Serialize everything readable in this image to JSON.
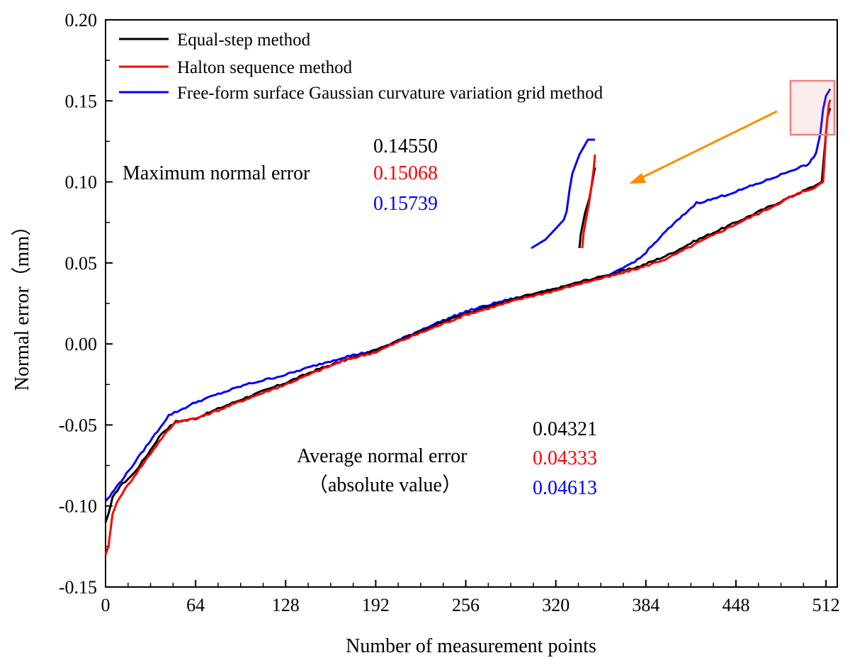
{
  "chart_data": {
    "type": "line",
    "xlabel": "Number of measurement points",
    "ylabel": "Normal error（mm）",
    "xlim": [
      0,
      520
    ],
    "ylim": [
      -0.15,
      0.2
    ],
    "x_ticks": [
      0,
      64,
      128,
      192,
      256,
      320,
      384,
      448,
      512
    ],
    "x_tick_labels": [
      "0",
      "64",
      "128",
      "192",
      "256",
      "320",
      "384",
      "448",
      "512"
    ],
    "y_ticks": [
      -0.15,
      -0.1,
      -0.05,
      0.0,
      0.05,
      0.1,
      0.15,
      0.2
    ],
    "y_tick_labels": [
      "-0.15",
      "-0.10",
      "-0.05",
      "0.00",
      "0.05",
      "0.10",
      "0.15",
      "0.20"
    ],
    "legend_position": "top-left",
    "series": [
      {
        "name": "Equal-step method",
        "color": "#000000",
        "x": [
          0,
          2,
          5,
          10,
          20,
          30,
          40,
          50,
          64,
          80,
          100,
          128,
          150,
          170,
          192,
          210,
          230,
          256,
          280,
          300,
          320,
          340,
          360,
          380,
          400,
          420,
          448,
          470,
          490,
          505,
          509,
          511,
          513,
          515
        ],
        "y": [
          -0.11,
          -0.105,
          -0.095,
          -0.088,
          -0.08,
          -0.068,
          -0.055,
          -0.048,
          -0.046,
          -0.04,
          -0.033,
          -0.024,
          -0.016,
          -0.01,
          -0.004,
          0.003,
          0.01,
          0.019,
          0.025,
          0.03,
          0.034,
          0.039,
          0.043,
          0.048,
          0.055,
          0.064,
          0.075,
          0.084,
          0.092,
          0.098,
          0.1,
          0.12,
          0.14,
          0.1455
        ]
      },
      {
        "name": "Halton sequence method",
        "color": "#ff0000",
        "x": [
          0,
          2,
          5,
          8,
          12,
          20,
          30,
          40,
          50,
          64,
          80,
          100,
          128,
          150,
          170,
          192,
          210,
          230,
          256,
          280,
          300,
          320,
          340,
          360,
          380,
          400,
          420,
          448,
          470,
          490,
          505,
          508,
          510,
          512,
          514,
          515
        ],
        "y": [
          -0.13,
          -0.125,
          -0.105,
          -0.098,
          -0.092,
          -0.082,
          -0.07,
          -0.058,
          -0.048,
          -0.046,
          -0.041,
          -0.034,
          -0.025,
          -0.017,
          -0.01,
          -0.005,
          0.002,
          0.009,
          0.018,
          0.024,
          0.029,
          0.033,
          0.038,
          0.042,
          0.047,
          0.053,
          0.062,
          0.074,
          0.083,
          0.092,
          0.097,
          0.099,
          0.1,
          0.13,
          0.148,
          0.15068
        ]
      },
      {
        "name": "Free-form surface Gaussian curvature variation grid method",
        "color": "#0000ff",
        "x": [
          0,
          3,
          8,
          15,
          25,
          35,
          45,
          55,
          64,
          80,
          100,
          128,
          150,
          170,
          192,
          210,
          230,
          256,
          280,
          300,
          320,
          340,
          360,
          370,
          380,
          390,
          400,
          410,
          420,
          430,
          448,
          470,
          490,
          500,
          505,
          508,
          510,
          512,
          515
        ],
        "y": [
          -0.097,
          -0.094,
          -0.088,
          -0.08,
          -0.068,
          -0.056,
          -0.044,
          -0.04,
          -0.036,
          -0.031,
          -0.025,
          -0.019,
          -0.013,
          -0.008,
          -0.004,
          0.003,
          0.011,
          0.02,
          0.026,
          0.03,
          0.034,
          0.038,
          0.043,
          0.048,
          0.053,
          0.062,
          0.071,
          0.079,
          0.087,
          0.089,
          0.094,
          0.101,
          0.108,
          0.111,
          0.118,
          0.13,
          0.145,
          0.153,
          0.15739
        ]
      }
    ],
    "annotations": {
      "max_label": "Maximum normal error",
      "max_values": [
        {
          "text": "0.14550",
          "color": "#000000"
        },
        {
          "text": "0.15068",
          "color": "#ff0000"
        },
        {
          "text": "0.15739",
          "color": "#0000ff"
        }
      ],
      "avg_label_line1": "Average normal error",
      "avg_label_line2": "（absolute value）",
      "avg_values": [
        {
          "text": "0.04321",
          "color": "#000000"
        },
        {
          "text": "0.04333",
          "color": "#ff0000"
        },
        {
          "text": "0.04613",
          "color": "#0000ff"
        }
      ],
      "arrow_color": "#ff8c00",
      "highlight_box_color": "#f08080"
    }
  }
}
